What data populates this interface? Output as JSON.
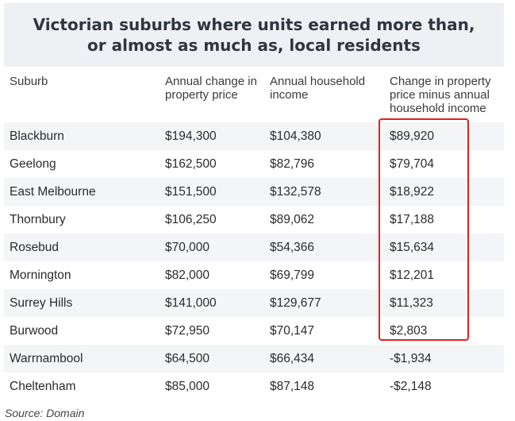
{
  "title": "Victorian suburbs where units earned more than, or almost as much as, local residents",
  "headers": {
    "suburb": "Suburb",
    "price_change": "Annual change in property price",
    "income": "Annual household income",
    "difference": "Change in property price minus annual household income"
  },
  "rows": [
    {
      "suburb": "Blackburn",
      "price_change": "$194,300",
      "income": "$104,380",
      "difference": "$89,920"
    },
    {
      "suburb": "Geelong",
      "price_change": "$162,500",
      "income": "$82,796",
      "difference": "$79,704"
    },
    {
      "suburb": "East Melbourne",
      "price_change": "$151,500",
      "income": "$132,578",
      "difference": "$18,922"
    },
    {
      "suburb": "Thornbury",
      "price_change": "$106,250",
      "income": "$89,062",
      "difference": "$17,188"
    },
    {
      "suburb": "Rosebud",
      "price_change": "$70,000",
      "income": "$54,366",
      "difference": "$15,634"
    },
    {
      "suburb": "Mornington",
      "price_change": "$82,000",
      "income": "$69,799",
      "difference": "$12,201"
    },
    {
      "suburb": "Surrey Hills",
      "price_change": "$141,000",
      "income": "$129,677",
      "difference": "$11,323"
    },
    {
      "suburb": "Burwood",
      "price_change": "$72,950",
      "income": "$70,147",
      "difference": "$2,803"
    },
    {
      "suburb": "Warrnambool",
      "price_change": "$64,500",
      "income": "$66,434",
      "difference": "-$1,934"
    },
    {
      "suburb": "Cheltenham",
      "price_change": "$85,000",
      "income": "$87,148",
      "difference": "-$2,148"
    }
  ],
  "source": "Source: Domain",
  "colors": {
    "title_background": "#eef0f3",
    "row_shade": "#f4f5f7",
    "highlight_border": "#e02020"
  }
}
